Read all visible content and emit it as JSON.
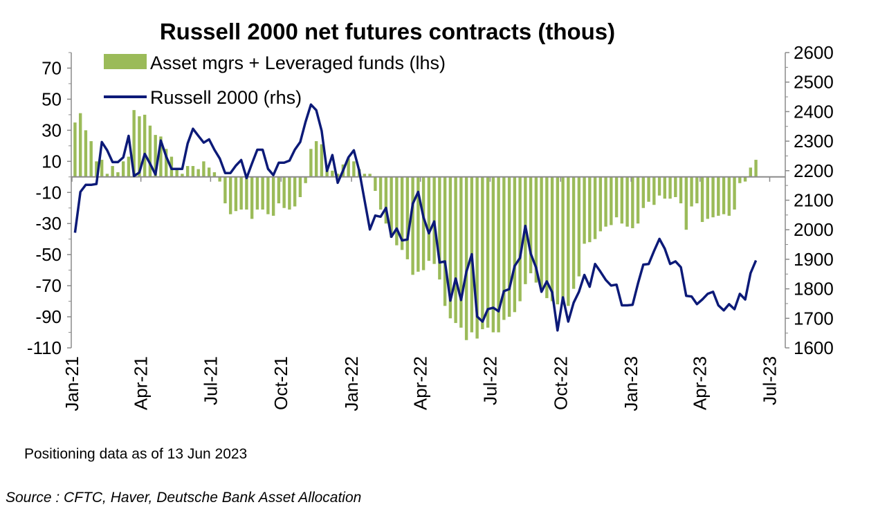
{
  "chart_data": {
    "type": "bar+line",
    "title": "Russell 2000 net futures contracts  (thous)",
    "legend": [
      {
        "name": "Asset mgrs + Leveraged funds (lhs)",
        "kind": "bar",
        "color": "#9bbb59"
      },
      {
        "name": "Russell 2000 (rhs)",
        "kind": "line",
        "color": "#0c1a78"
      }
    ],
    "legend_placement": "top-left",
    "x_start": "2021-01-05",
    "x_step_days": 7,
    "x_ticks": [
      "Jan-21",
      "Apr-21",
      "Jul-21",
      "Oct-21",
      "Jan-22",
      "Apr-22",
      "Jul-22",
      "Oct-22",
      "Jan-23",
      "Apr-23",
      "Jul-23"
    ],
    "y_left": {
      "ylim": [
        -110,
        80
      ],
      "ticks": [
        70,
        50,
        30,
        10,
        -10,
        -30,
        -50,
        -70,
        -90,
        -110
      ]
    },
    "y_right": {
      "ylim": [
        1600,
        2600
      ],
      "ticks": [
        2600,
        2500,
        2400,
        2300,
        2200,
        2100,
        2000,
        1900,
        1800,
        1700,
        1600
      ]
    },
    "series": [
      {
        "name": "Asset mgrs + Leveraged funds (lhs)",
        "axis": "left",
        "values": [
          35,
          41,
          30,
          23,
          10,
          11,
          2,
          7,
          3,
          10,
          13,
          43,
          39,
          40,
          33,
          27,
          26,
          18,
          13,
          5,
          2,
          7,
          7,
          5,
          10,
          6,
          3,
          -3,
          -17,
          -24,
          -22,
          -21,
          -21,
          -27,
          -21,
          -21,
          -24,
          -25,
          -17,
          -20,
          -21,
          -19,
          -13,
          -4,
          18,
          23,
          21,
          4,
          4,
          2,
          8,
          12,
          10,
          5,
          2,
          2,
          -9,
          -21,
          -30,
          -39,
          -44,
          -47,
          -53,
          -63,
          -61,
          -60,
          -54,
          -56,
          -66,
          -83,
          -91,
          -94,
          -97,
          -105,
          -100,
          -104,
          -98,
          -97,
          -100,
          -100,
          -92,
          -90,
          -87,
          -80,
          -69,
          -62,
          -68,
          -72,
          -78,
          -80,
          -82,
          -80,
          -83,
          -72,
          -64,
          -43,
          -42,
          -40,
          -35,
          -32,
          -31,
          -26,
          -30,
          -32,
          -33,
          -30,
          -20,
          -16,
          -18,
          -12,
          -14,
          -14,
          -13,
          -17,
          -34,
          -19,
          -17,
          -29,
          -27,
          -26,
          -25,
          -24,
          -25,
          -21,
          -4,
          -3,
          6,
          11
        ]
      },
      {
        "name": "Russell 2000 (rhs)",
        "axis": "right",
        "values": [
          1990,
          2128,
          2152,
          2152,
          2155,
          2297,
          2269,
          2229,
          2229,
          2245,
          2318,
          2182,
          2194,
          2257,
          2224,
          2187,
          2302,
          2248,
          2206,
          2206,
          2206,
          2292,
          2342,
          2318,
          2295,
          2306,
          2271,
          2241,
          2192,
          2192,
          2217,
          2236,
          2175,
          2224,
          2271,
          2271,
          2206,
          2185,
          2227,
          2227,
          2234,
          2271,
          2297,
          2365,
          2424,
          2405,
          2335,
          2199,
          2253,
          2159,
          2201,
          2245,
          2269,
          2201,
          2100,
          2001,
          2048,
          2044,
          2074,
          1976,
          2004,
          1964,
          1967,
          2088,
          2128,
          2042,
          1988,
          2028,
          1889,
          1893,
          1760,
          1835,
          1762,
          1858,
          1917,
          1706,
          1689,
          1731,
          1736,
          1724,
          1792,
          1799,
          1877,
          1905,
          2013,
          1919,
          1872,
          1790,
          1825,
          1788,
          1659,
          1771,
          1689,
          1753,
          1790,
          1847,
          1807,
          1884,
          1858,
          1830,
          1811,
          1814,
          1744,
          1744,
          1746,
          1818,
          1882,
          1884,
          1928,
          1969,
          1936,
          1884,
          1893,
          1873,
          1776,
          1774,
          1748,
          1764,
          1783,
          1790,
          1744,
          1727,
          1748,
          1731,
          1783,
          1764,
          1853,
          1896
        ]
      }
    ]
  },
  "footnote": "Positioning data as of 13 Jun 2023",
  "source": "Source : CFTC, Haver, Deutsche Bank Asset Allocation"
}
